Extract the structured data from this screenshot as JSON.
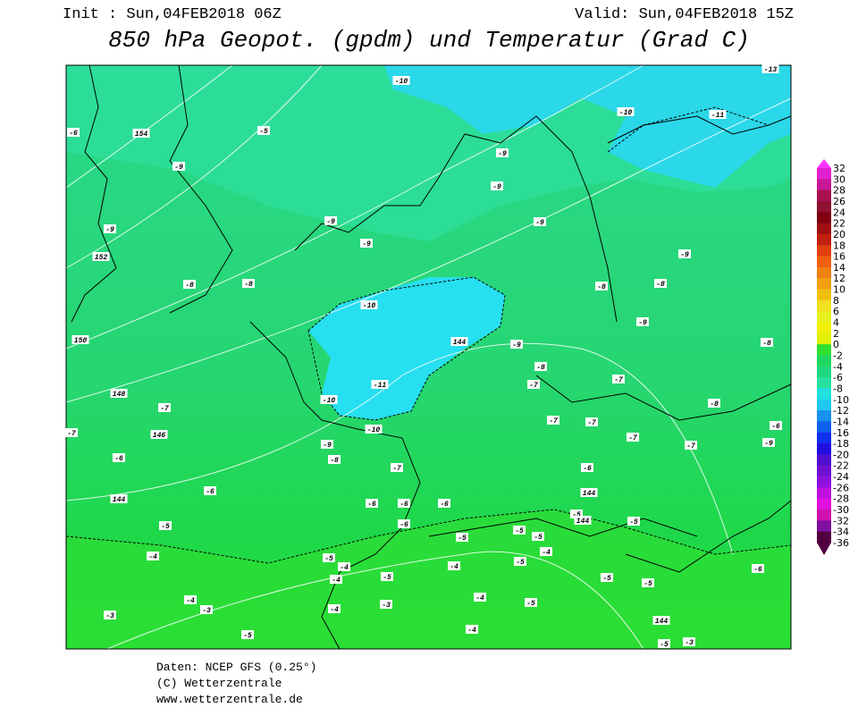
{
  "header": {
    "init": "Init : Sun,04FEB2018 06Z",
    "valid": "Valid: Sun,04FEB2018 15Z",
    "title": "850 hPa Geopot. (gpdm) und Temperatur (Grad C)"
  },
  "map": {
    "labels": [
      "-10",
      "-13",
      "-10",
      "-11",
      "-5",
      "154",
      "-6",
      "-9",
      "-9",
      "-9",
      "-9",
      "-9",
      "-9",
      "-9",
      "152",
      "-9",
      "-8",
      "-8",
      "-8",
      "-8",
      "-10",
      "-9",
      "150",
      "144",
      "-9",
      "-8",
      "-8",
      "-11",
      "-7",
      "-7",
      "148",
      "-10",
      "-8",
      "-7",
      "-7",
      "-7",
      "-6",
      "-10",
      "-7",
      "146",
      "-7",
      "-9",
      "-9",
      "-7",
      "-6",
      "-8",
      "-7",
      "-6",
      "-6",
      "144",
      "144",
      "-6",
      "-6",
      "-6",
      "-5",
      "144",
      "-5",
      "-6",
      "-5",
      "-5",
      "-5",
      "-5",
      "-5",
      "-4",
      "-4",
      "-4",
      "-5",
      "-4",
      "-6",
      "-4",
      "-5",
      "-5",
      "-5",
      "-4",
      "-4",
      "-3",
      "-5",
      "-3",
      "-4",
      "-3",
      "144",
      "-4",
      "-5",
      "-5",
      "-3"
    ]
  },
  "colorbar": {
    "levels": [
      32,
      30,
      28,
      26,
      24,
      22,
      20,
      18,
      16,
      14,
      12,
      10,
      8,
      6,
      4,
      2,
      0,
      -2,
      -4,
      -6,
      -8,
      -10,
      -12,
      -14,
      -16,
      -18,
      -20,
      -22,
      -24,
      -26,
      -28,
      -30,
      -32,
      -34,
      -36
    ],
    "colors": [
      "#ff33ff",
      "#e020d0",
      "#c81898",
      "#a81050",
      "#901030",
      "#800010",
      "#a01010",
      "#c02010",
      "#e04010",
      "#f06010",
      "#f08010",
      "#f0a010",
      "#f0c010",
      "#f0e020",
      "#e8f020",
      "#f0f000",
      "#e0f000",
      "#30e030",
      "#20d860",
      "#20d880",
      "#28e0a0",
      "#20e0e0",
      "#20c8f0",
      "#1890f0",
      "#1060f0",
      "#1030f0",
      "#2010e0",
      "#5010d0",
      "#7010d0",
      "#9010e0",
      "#c010e0",
      "#e010e0",
      "#d010b0",
      "#8010a0",
      "#500040"
    ]
  },
  "footer": {
    "lines": [
      "Daten: NCEP GFS (0.25°)",
      "(C) Wetterzentrale",
      "www.wetterzentrale.de"
    ]
  }
}
